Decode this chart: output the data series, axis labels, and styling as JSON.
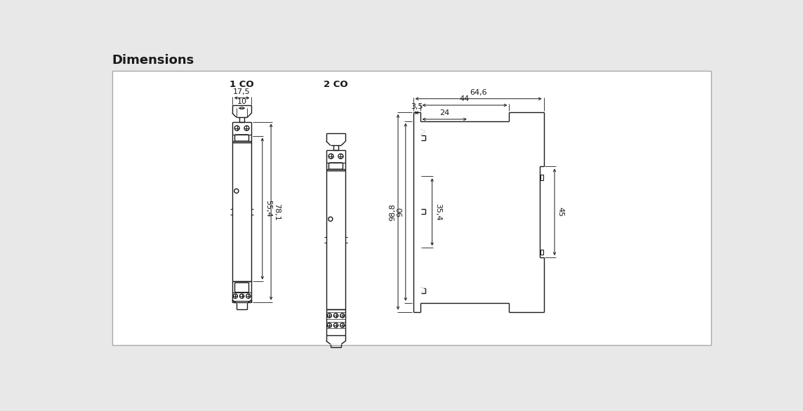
{
  "title": "Dimensions",
  "bg_color": "#e8e8e8",
  "white": "#ffffff",
  "black": "#1a1a1a",
  "line_color": "#1a1a1a",
  "label_1co": "1 CO",
  "label_2co": "2 CO",
  "dim_175": "17,5",
  "dim_10": "10",
  "dim_554": "55,4",
  "dim_781": "78,1",
  "dim_646": "64,6",
  "dim_44": "44",
  "dim_35": "3,5",
  "dim_24": "24",
  "dim_988": "98,8",
  "dim_90": "90",
  "dim_354": "35,4",
  "dim_45": "45"
}
